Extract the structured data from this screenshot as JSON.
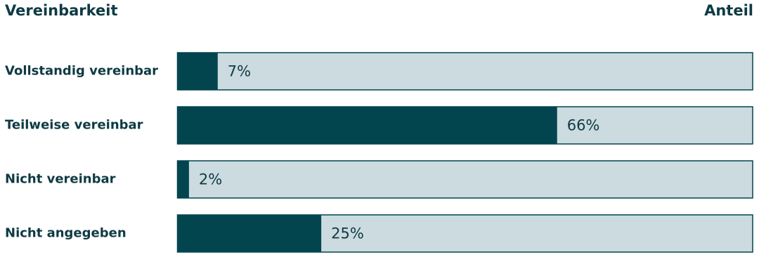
{
  "chart_data": {
    "type": "bar",
    "orientation": "horizontal",
    "category_header": "Vereinbarkeit",
    "value_header": "Anteil",
    "categories": [
      "Vollstandig vereinbar",
      "Teilweise vereinbar",
      "Nicht vereinbar",
      "Nicht angegeben"
    ],
    "values": [
      7,
      66,
      2,
      25
    ],
    "value_labels": [
      "7%",
      "66%",
      "2%",
      "25%"
    ],
    "xlim": [
      0,
      100
    ],
    "color": "#02454f",
    "track_color": "#ccdbdf"
  }
}
